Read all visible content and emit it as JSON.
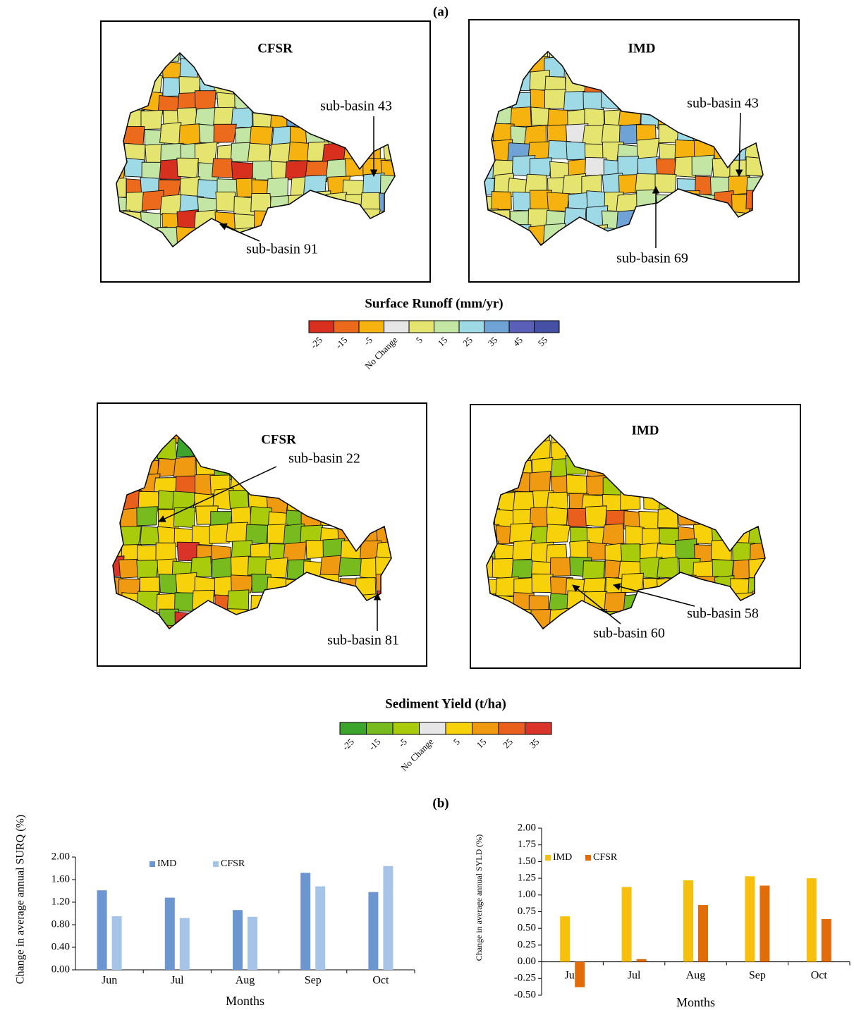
{
  "panel_a_label": "(a)",
  "panel_b_label": "(b)",
  "maps": [
    {
      "title": "CFSR",
      "annotations": [
        "sub-basin 43",
        "sub-basin 91"
      ]
    },
    {
      "title": "IMD",
      "annotations": [
        "sub-basin 43",
        "sub-basin 69"
      ]
    },
    {
      "title": "CFSR",
      "annotations": [
        "sub-basin 22",
        "sub-basin 81"
      ]
    },
    {
      "title": "IMD",
      "annotations": [
        "sub-basin 58",
        "sub-basin 60"
      ]
    }
  ],
  "legends": [
    {
      "title": "Surface Runoff (mm/yr)",
      "colors": [
        "#d7301f",
        "#ec6a1c",
        "#f6b20f",
        "#e6e6e6",
        "#e4e46e",
        "#c3e6a4",
        "#9ed9e6",
        "#6fa3d6",
        "#5a5fb8",
        "#4650a5"
      ],
      "labels": [
        "-25",
        "-15",
        "-5",
        "No Change",
        "5",
        "15",
        "25",
        "35",
        "45",
        "55"
      ]
    },
    {
      "title": "Sediment Yield (t/ha)",
      "colors": [
        "#3aa52a",
        "#77bb1e",
        "#a8cc0c",
        "#e6e6e6",
        "#f7d10a",
        "#f09a12",
        "#e8601c",
        "#d9332a"
      ],
      "labels": [
        "-25",
        "-15",
        "-5",
        "No Change",
        "5",
        "15",
        "25",
        "35"
      ]
    }
  ],
  "chart_data": [
    {
      "type": "bar",
      "y_label": "Change in average annual SURQ (%)",
      "x_label": "Months",
      "categories": [
        "Jun",
        "Jul",
        "Aug",
        "Sep",
        "Oct"
      ],
      "series": [
        {
          "name": "IMD",
          "color": "#6b96cf",
          "values": [
            1.41,
            1.28,
            1.06,
            1.72,
            1.38
          ]
        },
        {
          "name": "CFSR",
          "color": "#a6c3e8",
          "values": [
            0.95,
            0.92,
            0.94,
            1.48,
            1.84
          ]
        }
      ],
      "ylim": [
        0,
        2
      ],
      "yticks": [
        {
          "value": 0,
          "label": "0.00"
        },
        {
          "value": 0.4,
          "label": "0.40"
        },
        {
          "value": 0.8,
          "label": "0.80"
        },
        {
          "value": 1.2,
          "label": "1.20"
        },
        {
          "value": 1.6,
          "label": "1.60"
        },
        {
          "value": 2,
          "label": "2.00"
        }
      ]
    },
    {
      "type": "bar",
      "y_label": "Change in average annual SYLD (%)",
      "x_label": "Months",
      "categories": [
        "Jun",
        "Jul",
        "Aug",
        "Sep",
        "Oct"
      ],
      "series": [
        {
          "name": "IMD",
          "color": "#f7c00e",
          "values": [
            0.68,
            1.12,
            1.22,
            1.28,
            1.25
          ]
        },
        {
          "name": "CFSR",
          "color": "#e36c0a",
          "values": [
            -0.38,
            0.04,
            0.85,
            1.14,
            0.64
          ]
        }
      ],
      "ylim": [
        -0.5,
        2
      ],
      "yticks": [
        {
          "value": -0.5,
          "label": "-0.50"
        },
        {
          "value": -0.25,
          "label": "-0.25"
        },
        {
          "value": 0,
          "label": "0.00"
        },
        {
          "value": 0.25,
          "label": "0.25"
        },
        {
          "value": 0.5,
          "label": "0.50"
        },
        {
          "value": 0.75,
          "label": "0.75"
        },
        {
          "value": 1,
          "label": "1.00"
        },
        {
          "value": 1.25,
          "label": "1.25"
        },
        {
          "value": 1.5,
          "label": "1.50"
        },
        {
          "value": 1.75,
          "label": "1.75"
        },
        {
          "value": 2,
          "label": "2.00"
        }
      ]
    }
  ]
}
